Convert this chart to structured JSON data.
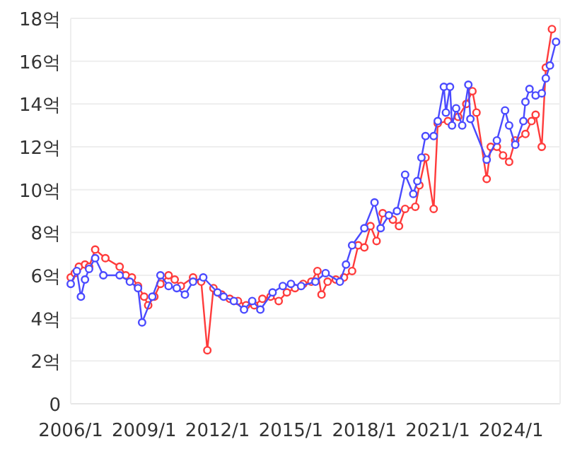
{
  "chart_data": {
    "type": "line",
    "marker": "circle",
    "grid": "y",
    "xlim": [
      "2006-01",
      "2026-01"
    ],
    "ylim": [
      0,
      18
    ],
    "xticks": [
      {
        "value": "2006-01",
        "label": "2006/1"
      },
      {
        "value": "2009-01",
        "label": "2009/1"
      },
      {
        "value": "2012-01",
        "label": "2012/1"
      },
      {
        "value": "2015-01",
        "label": "2015/1"
      },
      {
        "value": "2018-01",
        "label": "2018/1"
      },
      {
        "value": "2021-01",
        "label": "2021/1"
      },
      {
        "value": "2024-01",
        "label": "2024/1"
      }
    ],
    "yticks": [
      0,
      {
        "value": 2,
        "label": "2억"
      },
      {
        "value": 4,
        "label": "4억"
      },
      {
        "value": 6,
        "label": "6억"
      },
      {
        "value": 8,
        "label": "8억"
      },
      {
        "value": 10,
        "label": "10억"
      },
      {
        "value": 12,
        "label": "12억"
      },
      {
        "value": 14,
        "label": "14억"
      },
      {
        "value": 16,
        "label": "16억"
      },
      {
        "value": 18,
        "label": "18억"
      }
    ],
    "series": [
      {
        "color": "#ff3b3b",
        "x": [
          "2006-01",
          "2006-03",
          "2006-05",
          "2006-08",
          "2006-10",
          "2007-01",
          "2007-06",
          "2008-01",
          "2008-04",
          "2008-07",
          "2008-10",
          "2009-01",
          "2009-03",
          "2009-06",
          "2009-09",
          "2010-01",
          "2010-04",
          "2010-07",
          "2011-01",
          "2011-05",
          "2011-08",
          "2011-11",
          "2012-03",
          "2012-07",
          "2012-11",
          "2013-03",
          "2013-07",
          "2013-11",
          "2014-03",
          "2014-07",
          "2014-11",
          "2015-03",
          "2015-07",
          "2015-11",
          "2016-02",
          "2016-04",
          "2016-07",
          "2016-11",
          "2017-03",
          "2017-07",
          "2017-10",
          "2018-01",
          "2018-04",
          "2018-07",
          "2018-10",
          "2019-03",
          "2019-06",
          "2019-09",
          "2020-02",
          "2020-04",
          "2020-07",
          "2020-11",
          "2021-01",
          "2021-06",
          "2021-11",
          "2022-03",
          "2022-06",
          "2022-08",
          "2023-01",
          "2023-03",
          "2023-06",
          "2023-09",
          "2023-12",
          "2024-03",
          "2024-08",
          "2024-11",
          "2025-01",
          "2025-04",
          "2025-06",
          "2025-09"
        ],
        "values": [
          5.9,
          6.1,
          6.4,
          6.5,
          6.4,
          7.2,
          6.8,
          6.4,
          6.0,
          5.9,
          5.5,
          5.0,
          4.6,
          5.0,
          5.6,
          6.0,
          5.8,
          5.5,
          5.9,
          5.7,
          2.5,
          5.4,
          5.1,
          4.9,
          4.8,
          4.6,
          4.6,
          4.9,
          5.0,
          4.8,
          5.2,
          5.4,
          5.6,
          5.7,
          6.2,
          5.1,
          5.7,
          5.8,
          5.9,
          6.2,
          7.4,
          7.3,
          8.3,
          7.6,
          8.9,
          8.6,
          8.3,
          9.1,
          9.2,
          10.2,
          11.5,
          9.1,
          13.1,
          13.2,
          13.4,
          14.0,
          14.6,
          13.6,
          10.5,
          12.0,
          12.0,
          11.6,
          11.3,
          12.3,
          12.6,
          13.2,
          13.5,
          12.0,
          15.7,
          17.5
        ]
      },
      {
        "color": "#4a4aff",
        "x": [
          "2006-01",
          "2006-04",
          "2006-06",
          "2006-08",
          "2006-10",
          "2007-01",
          "2007-05",
          "2008-01",
          "2008-06",
          "2008-10",
          "2008-12",
          "2009-05",
          "2009-09",
          "2010-01",
          "2010-05",
          "2010-09",
          "2011-01",
          "2011-06",
          "2012-01",
          "2012-04",
          "2012-09",
          "2013-02",
          "2013-06",
          "2013-10",
          "2014-04",
          "2014-09",
          "2015-01",
          "2015-06",
          "2016-01",
          "2016-06",
          "2017-01",
          "2017-04",
          "2017-07",
          "2018-01",
          "2018-06",
          "2018-09",
          "2019-01",
          "2019-05",
          "2019-09",
          "2020-01",
          "2020-03",
          "2020-05",
          "2020-07",
          "2020-11",
          "2021-01",
          "2021-04",
          "2021-05",
          "2021-07",
          "2021-08",
          "2021-10",
          "2022-01",
          "2022-04",
          "2022-05",
          "2023-01",
          "2023-06",
          "2023-10",
          "2023-12",
          "2024-03",
          "2024-07",
          "2024-08",
          "2024-10",
          "2025-01",
          "2025-04",
          "2025-06",
          "2025-08",
          "2025-11"
        ],
        "values": [
          5.6,
          6.2,
          5.0,
          5.8,
          6.3,
          6.8,
          6.0,
          6.0,
          5.7,
          5.4,
          3.8,
          5.0,
          6.0,
          5.5,
          5.4,
          5.1,
          5.7,
          5.9,
          5.2,
          5.0,
          4.8,
          4.4,
          4.8,
          4.4,
          5.2,
          5.5,
          5.6,
          5.5,
          5.7,
          6.1,
          5.7,
          6.5,
          7.4,
          8.2,
          9.4,
          8.2,
          8.8,
          9.0,
          10.7,
          9.8,
          10.4,
          11.5,
          12.5,
          12.5,
          13.2,
          14.8,
          13.6,
          14.8,
          13.0,
          13.8,
          13.0,
          14.9,
          13.3,
          11.4,
          12.3,
          13.7,
          13.0,
          12.1,
          13.2,
          14.1,
          14.7,
          14.4,
          14.5,
          15.2,
          15.8,
          16.9
        ]
      }
    ]
  }
}
